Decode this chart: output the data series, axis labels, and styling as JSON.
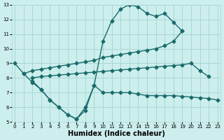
{
  "bg_color": "#cceeed",
  "grid_color": "#a8d8d5",
  "line_color": "#1a6b6b",
  "lw": 1.0,
  "ms": 2.5,
  "xlabel": "Humidex (Indice chaleur)",
  "xlabel_fontsize": 7,
  "x_min": -0.3,
  "x_max": 23.3,
  "y_min": 5,
  "y_max": 13,
  "yticks": [
    5,
    6,
    7,
    8,
    9,
    10,
    11,
    12,
    13
  ],
  "xticks": [
    0,
    1,
    2,
    3,
    4,
    5,
    6,
    7,
    8,
    9,
    10,
    11,
    12,
    13,
    14,
    15,
    16,
    17,
    18,
    19,
    20,
    21,
    22,
    23
  ],
  "curve1_x": [
    0,
    1,
    2,
    3,
    4,
    5,
    6,
    7,
    8,
    9,
    10,
    11,
    12,
    13,
    14,
    15,
    16,
    17,
    18,
    19
  ],
  "curve1_y": [
    9.0,
    8.3,
    7.7,
    7.2,
    6.5,
    6.0,
    5.5,
    5.2,
    6.0,
    7.5,
    10.5,
    11.9,
    12.7,
    13.0,
    12.85,
    12.4,
    12.2,
    12.4,
    11.8,
    11.2
  ],
  "curve2_x": [
    1,
    2,
    3,
    4,
    5,
    6,
    7,
    8,
    9,
    10,
    11,
    12,
    13,
    14,
    15,
    16,
    17,
    18,
    19
  ],
  "curve2_y": [
    8.3,
    8.5,
    8.6,
    8.7,
    8.8,
    8.9,
    9.0,
    9.1,
    9.2,
    9.4,
    9.5,
    9.6,
    9.7,
    9.8,
    9.9,
    10.0,
    10.2,
    10.5,
    11.2
  ],
  "curve3_x": [
    2,
    3,
    4,
    5,
    6,
    7,
    8,
    9,
    10,
    11,
    12,
    13,
    14,
    15,
    16,
    17,
    18,
    19,
    20,
    21,
    22
  ],
  "curve3_y": [
    8.0,
    8.1,
    8.15,
    8.2,
    8.25,
    8.3,
    8.35,
    8.4,
    8.45,
    8.5,
    8.55,
    8.6,
    8.65,
    8.7,
    8.75,
    8.8,
    8.85,
    8.9,
    9.0,
    8.5,
    8.1
  ],
  "curve4_x": [
    2,
    3,
    4,
    5,
    6,
    7,
    8,
    9,
    10,
    11,
    12,
    13,
    14,
    15,
    16,
    17,
    18,
    19,
    20,
    21,
    22,
    23
  ],
  "curve4_y": [
    7.8,
    7.2,
    6.5,
    6.0,
    5.5,
    5.2,
    5.8,
    7.5,
    7.0,
    7.0,
    7.0,
    7.0,
    6.9,
    6.8,
    6.8,
    6.8,
    6.8,
    6.75,
    6.7,
    6.65,
    6.6,
    6.5
  ]
}
